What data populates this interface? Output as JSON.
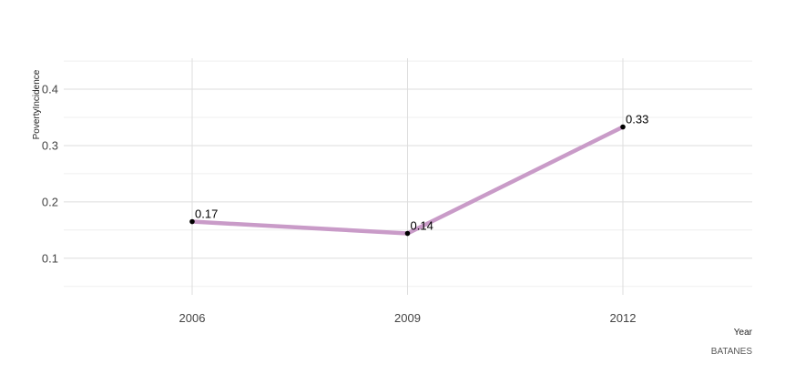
{
  "chart_data": {
    "type": "line",
    "x": [
      "2006",
      "2009",
      "2012"
    ],
    "series": [
      {
        "values": [
          0.165,
          0.144,
          0.333
        ],
        "labels": [
          "0.17",
          "0.14",
          "0.33"
        ]
      }
    ],
    "xlabel": "Year",
    "ylabel": "PovertyIncidence",
    "caption": "BATANES",
    "ylim": [
      0.035,
      0.455
    ],
    "yticks": [
      0.1,
      0.2,
      0.3,
      0.4
    ],
    "ytick_labels": [
      "0.1",
      "0.2",
      "0.3",
      "0.4"
    ],
    "grid": true,
    "line_color": "#c99bc8",
    "point_color": "#000000"
  }
}
